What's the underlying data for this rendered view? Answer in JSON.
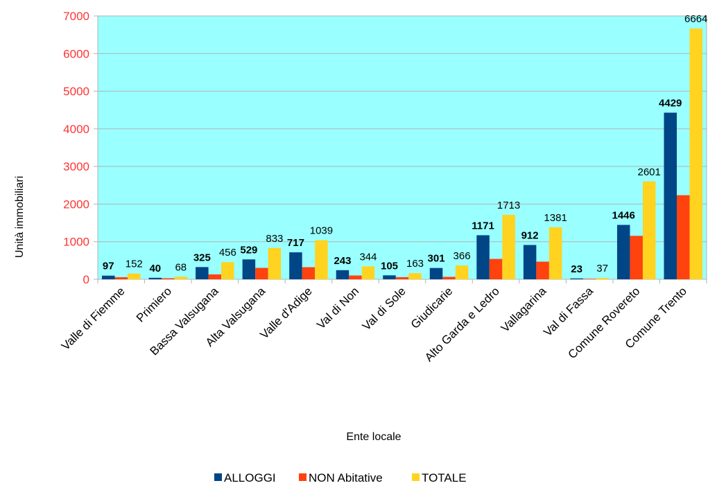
{
  "chart_data": {
    "type": "bar",
    "title": "",
    "xlabel": "Ente locale",
    "ylabel": "Unità immobiliari",
    "ylim": [
      0,
      7000
    ],
    "yticks": [
      0,
      1000,
      2000,
      3000,
      4000,
      5000,
      6000,
      7000
    ],
    "grid": true,
    "legend_position": "bottom",
    "colors": {
      "plot_background": "#99ffff",
      "ytick_text": "#ff3333",
      "gridline": "#b3b3b3"
    },
    "categories": [
      "Valle di Fiemme",
      "Primiero",
      "Bassa Valsugana",
      "Alta Valsugana",
      "Valle d'Adige",
      "Val di Non",
      "Val di Sole",
      "Giudicarie",
      "Alto Garda e Ledro",
      "Vallagarina",
      "Val di Fassa",
      "Comune Rovereto",
      "Comune Trento"
    ],
    "series": [
      {
        "name": "ALLOGGI",
        "color": "#004586",
        "label_bold": true,
        "values": [
          97,
          40,
          325,
          529,
          717,
          243,
          105,
          301,
          1171,
          912,
          23,
          1446,
          4429
        ],
        "labels": [
          "97",
          "40",
          "325",
          "529",
          "717",
          "243",
          "105",
          "301",
          "1171",
          "912",
          "23",
          "1446",
          "4429"
        ]
      },
      {
        "name": "NON Abitative",
        "color": "#ff420e",
        "label_bold": false,
        "values": [
          55,
          28,
          131,
          304,
          322,
          101,
          58,
          65,
          542,
          469,
          14,
          1155,
          2235
        ],
        "labels": []
      },
      {
        "name": "TOTALE",
        "color": "#ffd320",
        "label_bold": false,
        "values": [
          152,
          68,
          456,
          833,
          1039,
          344,
          163,
          366,
          1713,
          1381,
          37,
          2601,
          6664
        ],
        "labels": [
          "152",
          "68",
          "456",
          "833",
          "1039",
          "344",
          "163",
          "366",
          "1713",
          "1381",
          "37",
          "2601",
          "6664"
        ]
      }
    ]
  }
}
